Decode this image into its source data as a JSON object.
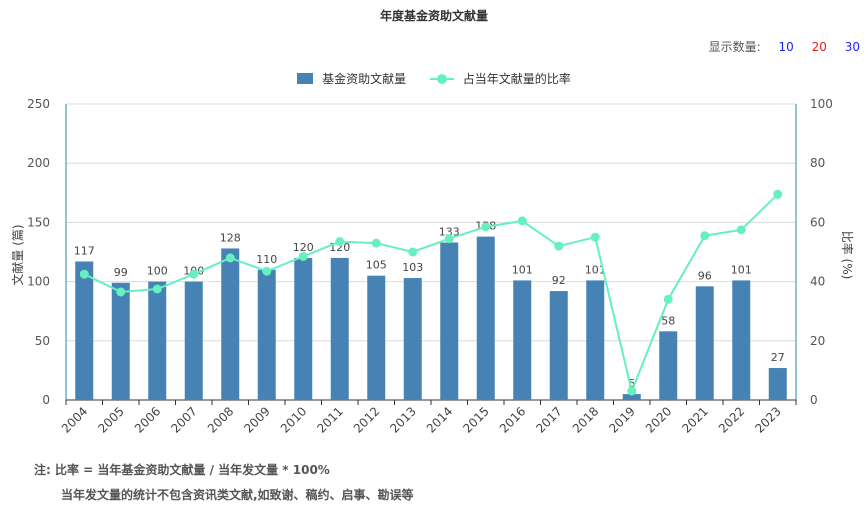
{
  "display": {
    "label": "显示数量:",
    "options": [
      "10",
      "20",
      "30"
    ],
    "colors": [
      "#1f1fff",
      "#e02020",
      "#1f1fff"
    ]
  },
  "notes": {
    "line1": "注:   比率 = 当年基金资助文献量 / 当年发文量 * 100%",
    "line2": "当年发文量的统计不包含资讯类文献,如致谢、稿约、启事、勘误等"
  },
  "chart_data": {
    "type": "bar+line",
    "title": "年度基金资助文献量",
    "categories": [
      "2004",
      "2005",
      "2006",
      "2007",
      "2008",
      "2009",
      "2010",
      "2011",
      "2012",
      "2013",
      "2014",
      "2015",
      "2016",
      "2017",
      "2018",
      "2019",
      "2020",
      "2021",
      "2022",
      "2023"
    ],
    "series": [
      {
        "name": "基金资助文献量",
        "type": "bar",
        "axis": "left",
        "color": "#4682b4",
        "values": [
          117,
          99,
          100,
          100,
          128,
          110,
          120,
          120,
          105,
          103,
          133,
          138,
          101,
          92,
          101,
          5,
          58,
          96,
          101,
          27
        ]
      },
      {
        "name": "占当年文献量的比率",
        "type": "line",
        "axis": "right",
        "color": "#66f0c0",
        "values": [
          42.5,
          36.5,
          37.5,
          42.5,
          48,
          43.5,
          48.5,
          53.5,
          53,
          50,
          54.5,
          58.5,
          60.5,
          52,
          55,
          3,
          34,
          55.5,
          57.5,
          69.5
        ]
      }
    ],
    "ylabel": "文献量 (篇)",
    "ylabel_right": "比率 (%)",
    "ylim": [
      0,
      250
    ],
    "ylim_right": [
      0,
      100
    ],
    "yticks": [
      0,
      50,
      100,
      150,
      200,
      250
    ],
    "yticks_right": [
      0,
      20,
      40,
      60,
      80,
      100
    ],
    "grid": true,
    "legend": "top-center"
  }
}
